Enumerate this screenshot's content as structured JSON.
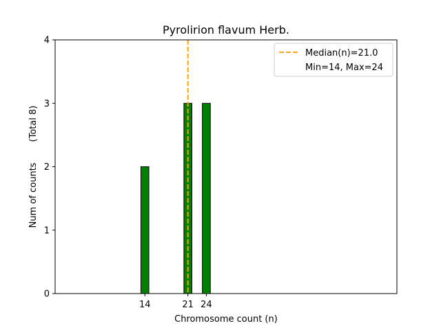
{
  "chart_data": {
    "type": "bar",
    "title": "Pyrolirion flavum Herb.",
    "xlabel": "Chromosome count (n)",
    "ylabel": "Num of counts",
    "ylabel_secondary": "(Total 8)",
    "x": [
      14,
      21,
      24
    ],
    "values": [
      2,
      3,
      3
    ],
    "bar_color": "#008000",
    "bar_edge_color": "#000000",
    "xticks": [
      14,
      21,
      24
    ],
    "yticks": [
      0,
      1,
      2,
      3,
      4
    ],
    "ylim": [
      0,
      4
    ],
    "xlim": [
      -0.6,
      55
    ],
    "grid": false,
    "median": {
      "value": 21.0,
      "label": "Median(n)=21.0",
      "color": "#FFA500",
      "style": "dashed"
    },
    "legend": {
      "placement": "top-right",
      "entries": [
        "Median(n)=21.0",
        "Min=14, Max=24"
      ]
    }
  }
}
